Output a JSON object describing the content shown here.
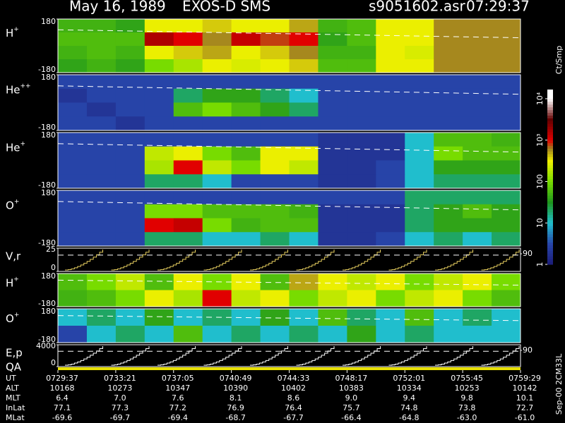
{
  "header": {
    "date": "May 16, 1989",
    "instrument": "EXOS-D SMS",
    "file": "s9051602.asr",
    "time": "07:29:37"
  },
  "colorbar": {
    "label": "Ct/Smp",
    "lim": [
      1,
      10000
    ],
    "ticks": [
      1,
      10,
      100,
      {
        "value": 1000,
        "label": "10³"
      },
      {
        "value": 10000,
        "label": "10⁴"
      }
    ]
  },
  "panels": [
    {
      "ion": "H",
      "charge": "+",
      "yticks": [
        180,
        -180
      ],
      "counts": [
        [
          50,
          50,
          40,
          300,
          300,
          400,
          300,
          300,
          500,
          50,
          60,
          300,
          300,
          600,
          600,
          600
        ],
        [
          60,
          60,
          60,
          1600,
          1000,
          600,
          1300,
          800,
          1000,
          40,
          60,
          300,
          300,
          600,
          600,
          600
        ],
        [
          50,
          60,
          50,
          300,
          400,
          500,
          300,
          400,
          600,
          50,
          50,
          300,
          250,
          600,
          600,
          600
        ],
        [
          40,
          50,
          40,
          100,
          160,
          300,
          250,
          300,
          400,
          60,
          60,
          300,
          300,
          600,
          600,
          600
        ]
      ]
    },
    {
      "ion": "He",
      "charge": "++",
      "yticks": [
        180,
        -180
      ],
      "counts": [
        [
          3,
          3,
          3,
          3,
          3,
          3,
          3,
          3,
          3,
          3,
          3,
          3,
          3,
          3,
          3,
          3
        ],
        [
          2,
          3,
          3,
          3,
          20,
          40,
          40,
          20,
          10,
          3,
          3,
          3,
          3,
          3,
          3,
          3
        ],
        [
          3,
          2,
          3,
          3,
          60,
          100,
          60,
          40,
          20,
          3,
          3,
          3,
          3,
          3,
          3,
          3
        ],
        [
          3,
          3,
          2,
          3,
          3,
          3,
          3,
          3,
          3,
          3,
          3,
          3,
          3,
          3,
          3,
          3
        ]
      ]
    },
    {
      "ion": "He",
      "charge": "+",
      "yticks": [
        180,
        -180
      ],
      "counts": [
        [
          3,
          3,
          3,
          3,
          3,
          3,
          3,
          3,
          3,
          2,
          2,
          2,
          10,
          60,
          60,
          50
        ],
        [
          3,
          3,
          3,
          200,
          300,
          100,
          60,
          300,
          300,
          2,
          2,
          2,
          10,
          100,
          60,
          60
        ],
        [
          3,
          3,
          3,
          160,
          1000,
          200,
          100,
          300,
          200,
          2,
          2,
          3,
          10,
          40,
          40,
          40
        ],
        [
          3,
          3,
          3,
          20,
          20,
          10,
          3,
          3,
          3,
          2,
          2,
          3,
          10,
          20,
          20,
          20
        ]
      ]
    },
    {
      "ion": "O",
      "charge": "+",
      "yticks": [
        180,
        -180
      ],
      "counts": [
        [
          3,
          3,
          3,
          3,
          3,
          3,
          3,
          3,
          3,
          3,
          3,
          3,
          20,
          20,
          20,
          20
        ],
        [
          3,
          3,
          3,
          100,
          100,
          60,
          60,
          60,
          50,
          2,
          2,
          2,
          20,
          40,
          60,
          40
        ],
        [
          3,
          3,
          3,
          1000,
          1300,
          100,
          50,
          60,
          60,
          2,
          2,
          2,
          20,
          40,
          40,
          40
        ],
        [
          3,
          3,
          3,
          20,
          20,
          10,
          10,
          20,
          10,
          2,
          2,
          3,
          10,
          20,
          10,
          20
        ]
      ]
    }
  ],
  "small_panels": [
    {
      "ion": "H",
      "charge": "+",
      "yticks": [
        180,
        -180
      ],
      "counts": [
        [
          60,
          100,
          200,
          60,
          300,
          100,
          300,
          60,
          500,
          300,
          200,
          300,
          100,
          200,
          300,
          100
        ],
        [
          50,
          60,
          100,
          300,
          160,
          1000,
          200,
          300,
          100,
          200,
          300,
          100,
          200,
          300,
          100,
          60
        ]
      ]
    },
    {
      "ion": "O",
      "charge": "+",
      "yticks": [
        180,
        -180
      ],
      "counts": [
        [
          10,
          20,
          10,
          40,
          10,
          20,
          10,
          40,
          10,
          60,
          20,
          10,
          60,
          10,
          20,
          10
        ],
        [
          3,
          10,
          20,
          10,
          60,
          10,
          20,
          10,
          20,
          10,
          40,
          10,
          20,
          10,
          10,
          10
        ]
      ]
    }
  ],
  "line_panels": [
    {
      "label": "V,r",
      "yticks": [
        25,
        0
      ],
      "y2ticks": [
        90
      ]
    },
    {
      "label": "E,p",
      "extra_label": "QA",
      "yticks": [
        4000,
        0
      ],
      "y2ticks": [
        90
      ]
    }
  ],
  "footer": {
    "code": "Sep-00 2CM33L",
    "rows": [
      {
        "label": "UT",
        "values": [
          "0729:37",
          "0733:21",
          "0737:05",
          "0740:49",
          "0744:33",
          "0748:17",
          "0752:01",
          "0755:45",
          "0759:29"
        ]
      },
      {
        "label": "ALT",
        "values": [
          "10168",
          "10273",
          "10347",
          "10390",
          "10402",
          "10383",
          "10334",
          "10253",
          "10142"
        ]
      },
      {
        "label": "MLT",
        "values": [
          "6.4",
          "7.0",
          "7.6",
          "8.1",
          "8.6",
          "9.0",
          "9.4",
          "9.8",
          "10.1"
        ]
      },
      {
        "label": "InLat",
        "values": [
          "77.1",
          "77.3",
          "77.2",
          "76.9",
          "76.4",
          "75.7",
          "74.8",
          "73.8",
          "72.7"
        ]
      },
      {
        "label": "MLat",
        "values": [
          "-69.6",
          "-69.7",
          "-69.4",
          "-68.7",
          "-67.7",
          "-66.4",
          "-64.8",
          "-63.0",
          "-61.0"
        ]
      }
    ]
  }
}
